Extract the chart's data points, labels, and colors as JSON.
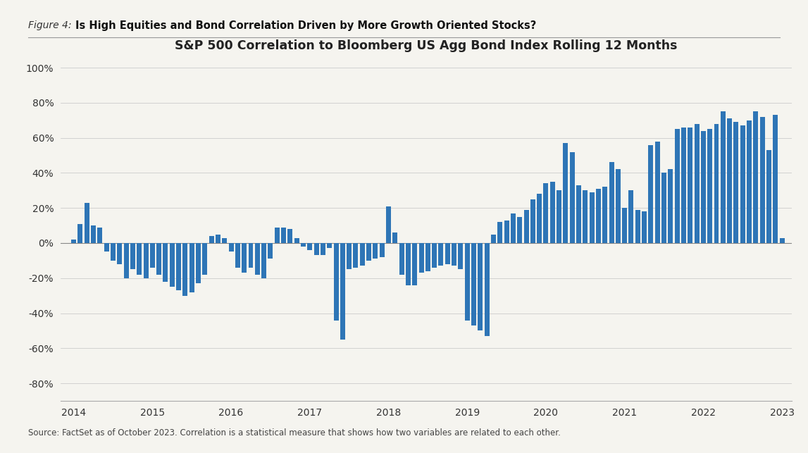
{
  "title": "S&P 500 Correlation to Bloomberg US Agg Bond Index Rolling 12 Months",
  "figure_label": "Figure 4:",
  "figure_title": "Is High Equities and Bond Correlation Driven by More Growth Oriented Stocks?",
  "source_text": "Source: FactSet as of October 2023. Correlation is a statistical measure that shows how two variables are related to each other.",
  "bar_color": "#2E75B6",
  "background_color": "#F5F4EF",
  "ylim": [
    -0.9,
    1.05
  ],
  "yticks": [
    -0.8,
    -0.6,
    -0.4,
    -0.2,
    0.0,
    0.2,
    0.4,
    0.6,
    0.8,
    1.0
  ],
  "xtick_labels": [
    "2014",
    "2015",
    "2016",
    "2017",
    "2018",
    "2019",
    "2020",
    "2021",
    "2022",
    "2023"
  ],
  "values": [
    0.02,
    0.11,
    0.23,
    0.1,
    0.09,
    -0.05,
    -0.1,
    -0.12,
    -0.2,
    -0.15,
    -0.18,
    -0.2,
    -0.14,
    -0.18,
    -0.22,
    -0.25,
    -0.27,
    -0.3,
    -0.28,
    -0.23,
    -0.18,
    0.04,
    0.05,
    0.03,
    -0.05,
    -0.14,
    -0.17,
    -0.14,
    -0.18,
    -0.2,
    -0.09,
    0.09,
    0.09,
    0.08,
    0.03,
    -0.02,
    -0.04,
    -0.07,
    -0.07,
    -0.03,
    -0.44,
    -0.55,
    -0.15,
    -0.14,
    -0.13,
    -0.1,
    -0.09,
    -0.08,
    0.21,
    0.06,
    -0.18,
    -0.24,
    -0.24,
    -0.17,
    -0.16,
    -0.14,
    -0.13,
    -0.12,
    -0.13,
    -0.15,
    -0.44,
    -0.47,
    -0.5,
    -0.53,
    0.05,
    0.12,
    0.13,
    0.17,
    0.15,
    0.19,
    0.25,
    0.28,
    0.34,
    0.35,
    0.3,
    0.57,
    0.52,
    0.33,
    0.3,
    0.29,
    0.31,
    0.32,
    0.46,
    0.42,
    0.2,
    0.3,
    0.19,
    0.18,
    0.56,
    0.58,
    0.4,
    0.42,
    0.65,
    0.66,
    0.66,
    0.68,
    0.64,
    0.65,
    0.68,
    0.75,
    0.71,
    0.69,
    0.67,
    0.7,
    0.75,
    0.72,
    0.53,
    0.73,
    0.03
  ]
}
